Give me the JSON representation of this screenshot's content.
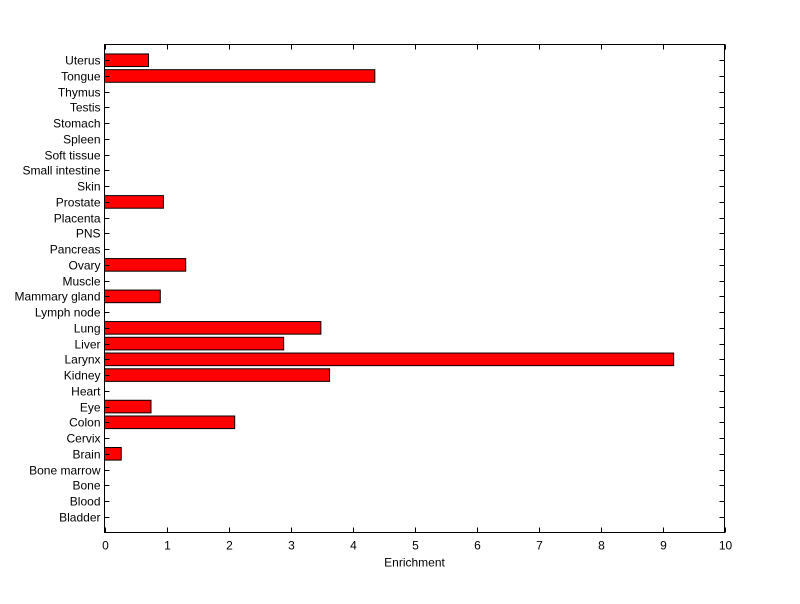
{
  "chart_data": {
    "type": "bar",
    "orientation": "horizontal",
    "title": "",
    "xlabel": "Enrichment",
    "ylabel": "",
    "xlim": [
      0,
      10
    ],
    "xticks": [
      0,
      1,
      2,
      3,
      4,
      5,
      6,
      7,
      8,
      9,
      10
    ],
    "grid": false,
    "bar_color": "#ff0000",
    "bar_edge_color": "#000000",
    "categories": [
      "Bladder",
      "Blood",
      "Bone",
      "Bone marrow",
      "Brain",
      "Cervix",
      "Colon",
      "Eye",
      "Heart",
      "Kidney",
      "Larynx",
      "Liver",
      "Lung",
      "Lymph node",
      "Mammary gland",
      "Muscle",
      "Ovary",
      "Pancreas",
      "PNS",
      "Placenta",
      "Prostate",
      "Skin",
      "Small intestine",
      "Soft tissue",
      "Spleen",
      "Stomach",
      "Testis",
      "Thymus",
      "Tongue",
      "Uterus"
    ],
    "values": [
      0,
      0,
      0,
      0,
      0.27,
      0,
      2.1,
      0.75,
      0,
      3.63,
      9.18,
      2.89,
      3.49,
      0,
      0.9,
      0,
      1.31,
      0,
      0,
      0,
      0.95,
      0,
      0,
      0,
      0,
      0,
      0,
      0,
      4.36,
      0.71
    ]
  }
}
